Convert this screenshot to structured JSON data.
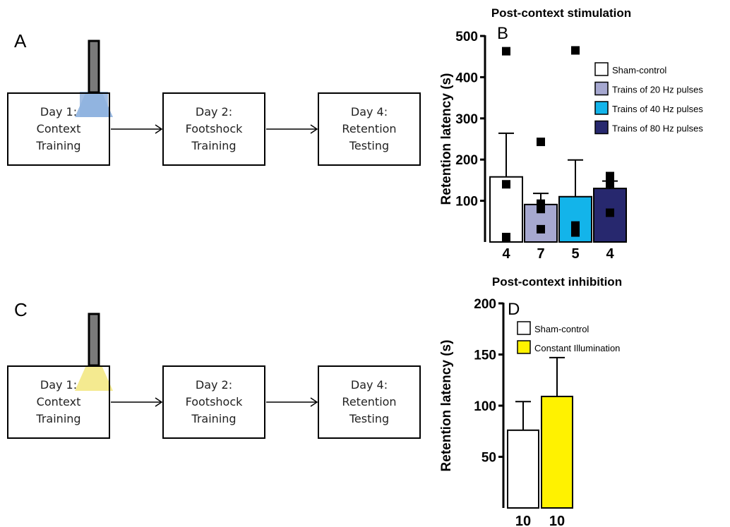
{
  "panels": {
    "A": {
      "letter": "A",
      "steps": [
        {
          "lines": [
            "Day 1:",
            "Context",
            "Training"
          ]
        },
        {
          "lines": [
            "Day 2:",
            "Footshock",
            "Training"
          ]
        },
        {
          "lines": [
            "Day 4:",
            "Retention",
            "Testing"
          ]
        }
      ],
      "light_color": "#8fb2df"
    },
    "C": {
      "letter": "C",
      "steps": [
        {
          "lines": [
            "Day 1:",
            "Context",
            "Training"
          ]
        },
        {
          "lines": [
            "Day 2:",
            "Footshock",
            "Training"
          ]
        },
        {
          "lines": [
            "Day 4:",
            "Retention",
            "Testing"
          ]
        }
      ],
      "light_color": "#f3e98a"
    }
  },
  "chart_data": [
    {
      "panel_letter": "B",
      "type": "bar",
      "title": "Post-context stimulation",
      "ylabel": "Retention latency (s)",
      "ylim": [
        0,
        500
      ],
      "yticks": [
        100,
        200,
        300,
        400,
        500
      ],
      "categories": [
        "4",
        "7",
        "5",
        "4"
      ],
      "series": [
        {
          "name": "Sham-control",
          "value": 158,
          "error": 106,
          "color": "#ffffff",
          "points": [
            463,
            140,
            12
          ]
        },
        {
          "name": "Trains of 20 Hz pulses",
          "value": 91,
          "error": 27,
          "color": "#a6a8d0",
          "points": [
            243,
            93,
            80,
            31
          ]
        },
        {
          "name": "Trains of 40 Hz pulses",
          "value": 110,
          "error": 89,
          "color": "#13b4ea",
          "points": [
            465,
            40,
            23
          ]
        },
        {
          "name": "Trains of 80 Hz pulses",
          "value": 130,
          "error": 18,
          "color": "#27286e",
          "points": [
            160,
            142,
            71
          ]
        }
      ],
      "legend_position": "top-right"
    },
    {
      "panel_letter": "D",
      "type": "bar",
      "title": "Post-context inhibition",
      "ylabel": "Retention latency (s)",
      "ylim": [
        0,
        200
      ],
      "yticks": [
        50,
        100,
        150,
        200
      ],
      "categories": [
        "10",
        "10"
      ],
      "series": [
        {
          "name": "Sham-control",
          "value": 76,
          "error": 28,
          "color": "#ffffff"
        },
        {
          "name": "Constant Illumination",
          "value": 109,
          "error": 38,
          "color": "#fff200"
        }
      ],
      "legend_position": "top-left"
    }
  ]
}
